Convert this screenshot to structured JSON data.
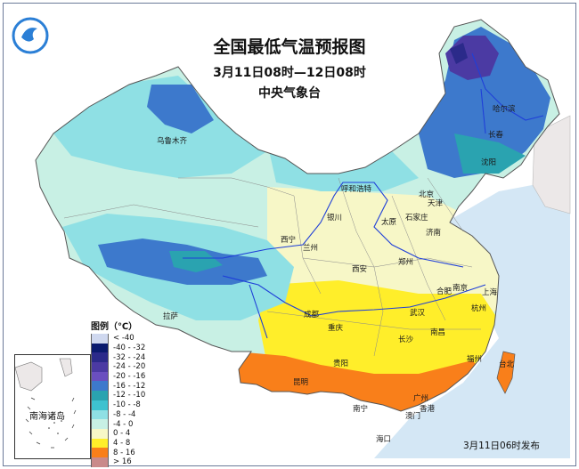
{
  "title": "全国最低气温预报图",
  "period": "3月11日08时—12日08时",
  "issuer": "中央气象台",
  "issue_time": "3月11日06时发布",
  "legend": {
    "title": "图例（℃）",
    "items": [
      {
        "label": "< -40",
        "color": "#cfd8ef"
      },
      {
        "label": "-40 - -32",
        "color": "#0a1a6e"
      },
      {
        "label": "-32 - -24",
        "color": "#2b2a8a"
      },
      {
        "label": "-24 - -20",
        "color": "#4b3aa3"
      },
      {
        "label": "-20 - -16",
        "color": "#6a4fbf"
      },
      {
        "label": "-16 - -12",
        "color": "#3d79cc"
      },
      {
        "label": "-12 - -10",
        "color": "#2aa3b0"
      },
      {
        "label": "-10 - -8",
        "color": "#3ec2cf"
      },
      {
        "label": "-8 - -4",
        "color": "#8fe0e4"
      },
      {
        "label": "-4 - 0",
        "color": "#c8f0e4"
      },
      {
        "label": "0 - 4",
        "color": "#f7f7c7"
      },
      {
        "label": "4 - 8",
        "color": "#ffee2a"
      },
      {
        "label": "8 - 16",
        "color": "#f97f1a"
      },
      {
        "label": "> 16",
        "color": "#c98a8a"
      }
    ]
  },
  "inset_label": "南海诸岛",
  "cities": [
    "乌鲁木齐",
    "哈尔滨",
    "长春",
    "沈阳",
    "呼和浩特",
    "北京",
    "天津",
    "银川",
    "太原",
    "石家庄",
    "济南",
    "西宁",
    "兰州",
    "郑州",
    "西安",
    "拉萨",
    "合肥",
    "南京",
    "上海",
    "成都",
    "武汉",
    "杭州",
    "重庆",
    "长沙",
    "南昌",
    "贵阳",
    "福州",
    "台北",
    "昆明",
    "南宁",
    "广州",
    "香港",
    "澳门",
    "海口"
  ]
}
